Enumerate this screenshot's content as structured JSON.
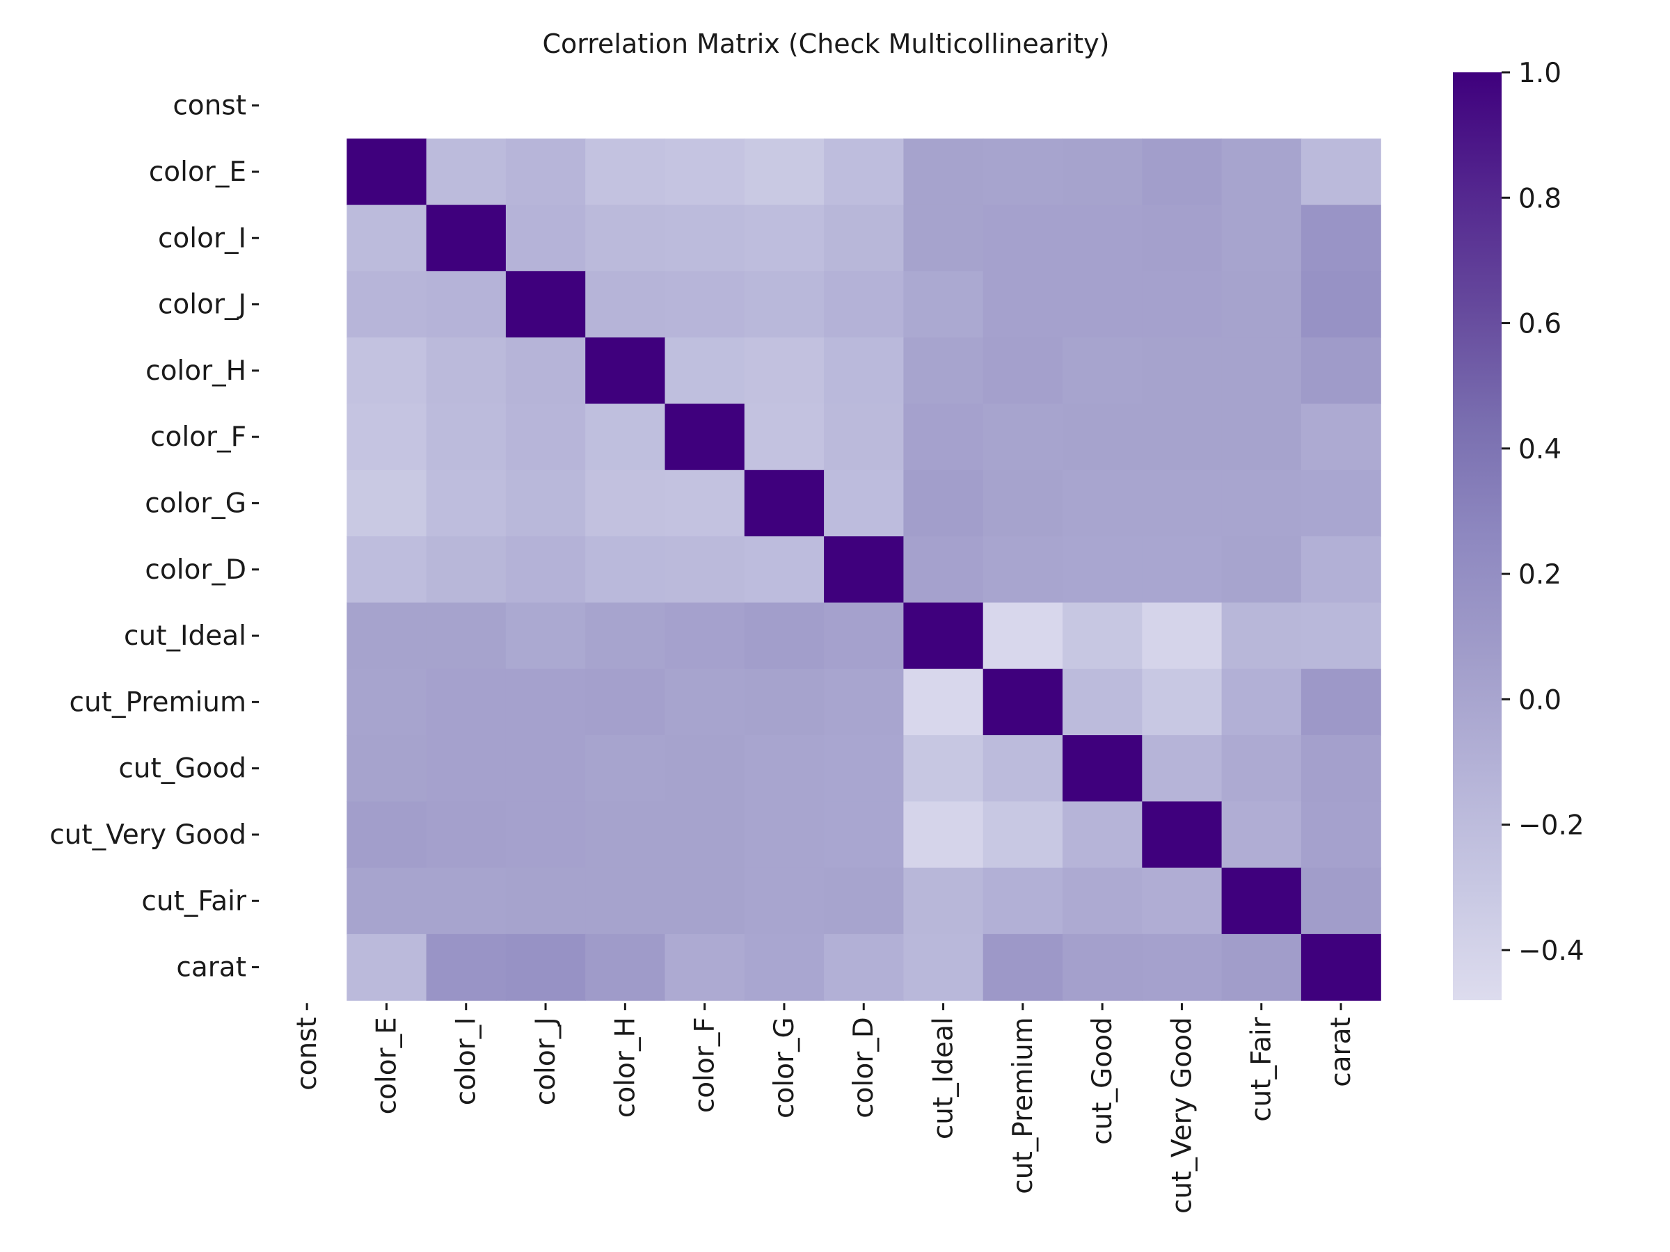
{
  "chart_data": {
    "type": "heatmap",
    "title": "Correlation Matrix (Check Multicollinearity)",
    "labels": [
      "const",
      "color_E",
      "color_I",
      "color_J",
      "color_H",
      "color_F",
      "color_G",
      "color_D",
      "cut_Ideal",
      "cut_Premium",
      "cut_Good",
      "cut_Very Good",
      "cut_Fair",
      "carat"
    ],
    "matrix": [
      [
        null,
        null,
        null,
        null,
        null,
        null,
        null,
        null,
        null,
        null,
        null,
        null,
        null,
        null
      ],
      [
        null,
        1.0,
        -0.19,
        -0.14,
        -0.25,
        -0.27,
        -0.31,
        -0.21,
        0.02,
        0.01,
        0.02,
        0.06,
        0.01,
        -0.18
      ],
      [
        null,
        -0.19,
        1.0,
        -0.12,
        -0.18,
        -0.19,
        -0.21,
        -0.15,
        0.02,
        0.03,
        0.03,
        0.04,
        0.01,
        0.15
      ],
      [
        null,
        -0.14,
        -0.12,
        1.0,
        -0.13,
        -0.14,
        -0.16,
        -0.11,
        -0.03,
        0.03,
        0.03,
        0.03,
        0.02,
        0.17
      ],
      [
        null,
        -0.25,
        -0.18,
        -0.13,
        1.0,
        -0.22,
        -0.24,
        -0.17,
        0.01,
        0.04,
        0.01,
        0.02,
        0.02,
        0.09
      ],
      [
        null,
        -0.27,
        -0.19,
        -0.14,
        -0.22,
        1.0,
        -0.25,
        -0.18,
        0.03,
        0.01,
        0.02,
        0.02,
        0.02,
        -0.04
      ],
      [
        null,
        -0.31,
        -0.21,
        -0.16,
        -0.24,
        -0.25,
        1.0,
        -0.2,
        0.06,
        0.02,
        0.0,
        0.0,
        0.0,
        -0.01
      ],
      [
        null,
        -0.21,
        -0.15,
        -0.11,
        -0.17,
        -0.18,
        -0.2,
        1.0,
        0.03,
        0.0,
        -0.01,
        -0.01,
        0.01,
        -0.09
      ],
      [
        null,
        0.02,
        0.02,
        -0.03,
        0.01,
        0.03,
        0.06,
        0.03,
        1.0,
        -0.44,
        -0.29,
        -0.41,
        -0.15,
        -0.16
      ],
      [
        null,
        0.01,
        0.03,
        0.03,
        0.04,
        0.01,
        0.02,
        0.0,
        -0.44,
        1.0,
        -0.19,
        -0.3,
        -0.09,
        0.11
      ],
      [
        null,
        0.02,
        0.03,
        0.03,
        0.01,
        0.02,
        0.0,
        -0.01,
        -0.29,
        -0.19,
        1.0,
        -0.13,
        -0.04,
        0.04
      ],
      [
        null,
        0.06,
        0.04,
        0.03,
        0.02,
        0.02,
        0.0,
        -0.01,
        -0.41,
        -0.3,
        -0.13,
        1.0,
        -0.07,
        0.03
      ],
      [
        null,
        0.01,
        0.01,
        0.02,
        0.02,
        0.02,
        0.0,
        0.01,
        -0.15,
        -0.09,
        -0.04,
        -0.07,
        1.0,
        0.07
      ],
      [
        null,
        -0.18,
        0.15,
        0.17,
        0.09,
        -0.04,
        -0.01,
        -0.09,
        -0.16,
        0.11,
        0.04,
        0.03,
        0.07,
        1.0
      ]
    ],
    "colorbar": {
      "vmin": -0.48,
      "vmax": 1.0,
      "ticks": [
        1.0,
        0.8,
        0.6,
        0.4,
        0.2,
        0.0,
        -0.2,
        -0.4
      ],
      "tick_labels": [
        "1.0",
        "0.8",
        "0.6",
        "0.4",
        "0.2",
        "0.0",
        "−0.2",
        "−0.4"
      ],
      "colormap": "Purples"
    },
    "colors": {
      "low": "#dddcee",
      "high": "#3f007d"
    },
    "grid": false
  }
}
